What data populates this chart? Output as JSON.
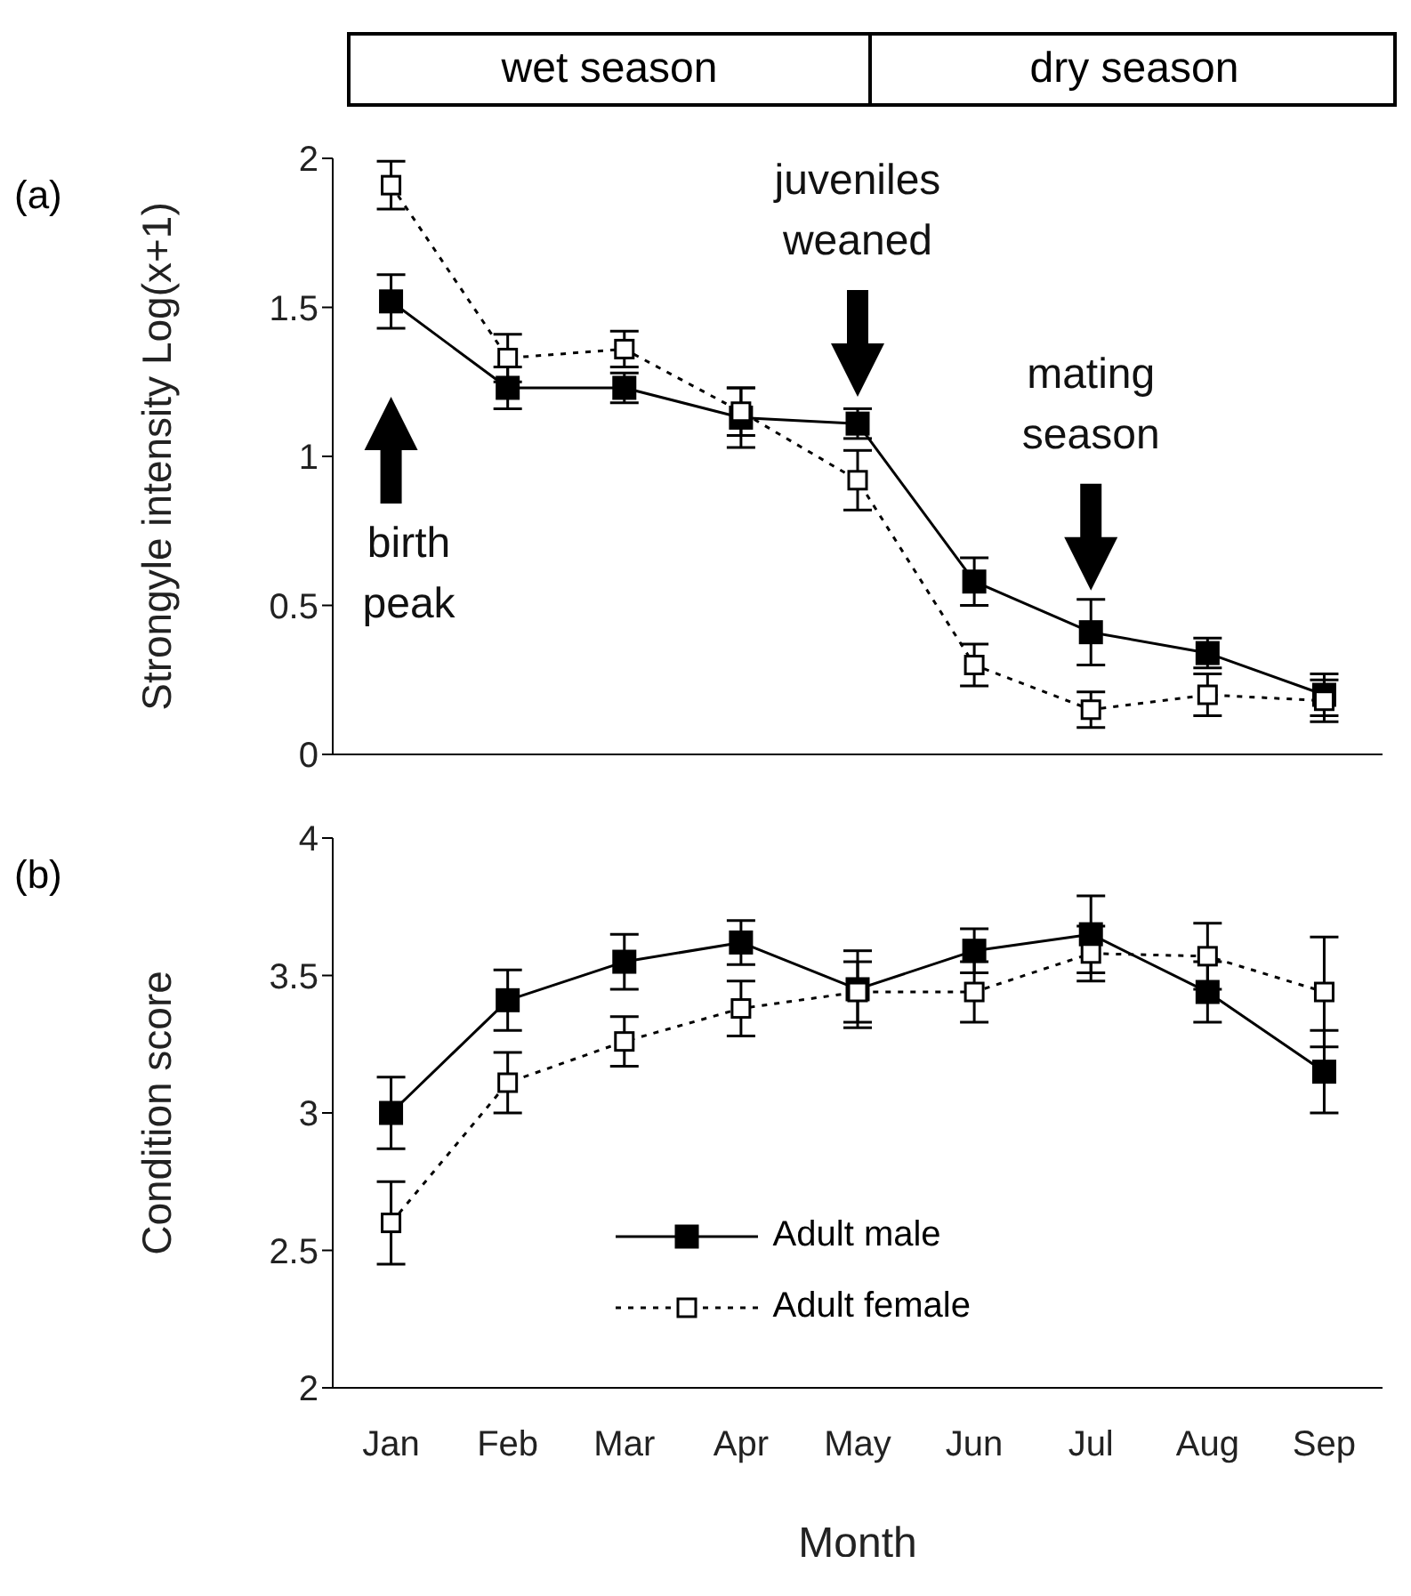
{
  "chart_data": [
    {
      "type": "line",
      "title": "(a)",
      "ylabel": "Strongyle intensity Log(x+1)",
      "categories": [
        null,
        null,
        null,
        null,
        null,
        null,
        null,
        null,
        null
      ],
      "ylim": [
        0,
        2
      ],
      "yticks": [
        0,
        0.5,
        1,
        1.5,
        2
      ],
      "tick_labels": "y",
      "marker": "square",
      "series": [
        {
          "color": "#000000",
          "line_style": "solid",
          "values": [
            1.52,
            1.23,
            1.23,
            1.13,
            1.11,
            0.58,
            0.41,
            0.34,
            0.2
          ],
          "errors": [
            0.09,
            0.07,
            0.05,
            0.1,
            0.05,
            0.08,
            0.11,
            0.05,
            0.07
          ]
        },
        {
          "color": "#000000",
          "line_style": "dotted",
          "values": [
            1.91,
            1.33,
            1.36,
            1.15,
            0.92,
            0.3,
            0.15,
            0.2,
            0.18
          ],
          "errors": [
            0.08,
            0.08,
            0.06,
            0.08,
            0.1,
            0.07,
            0.06,
            0.07,
            0.07
          ]
        }
      ],
      "annotations": [
        "wet season",
        "dry season",
        "birth peak",
        "juveniles weaned",
        "mating season"
      ]
    },
    {
      "type": "line",
      "title": "(b)",
      "ylabel": "Condition score",
      "xlabel": "Month",
      "categories": [
        "Jan",
        "Feb",
        "Mar",
        "Apr",
        "May",
        "Jun",
        "Jul",
        "Aug",
        "Sep"
      ],
      "ylim": [
        2,
        4
      ],
      "yticks": [
        2,
        2.5,
        3,
        3.5,
        4
      ],
      "marker": "square",
      "legend": "bottom",
      "series": [
        {
          "name": "Adult male",
          "color": "#000000",
          "line_style": "solid",
          "values": [
            3.0,
            3.41,
            3.55,
            3.62,
            3.45,
            3.59,
            3.65,
            3.44,
            3.15
          ],
          "errors": [
            0.13,
            0.11,
            0.1,
            0.08,
            0.14,
            0.08,
            0.14,
            0.11,
            0.15
          ]
        },
        {
          "name": "Adult female",
          "color": "#000000",
          "line_style": "dotted",
          "values": [
            2.6,
            3.11,
            3.26,
            3.38,
            3.44,
            3.44,
            3.58,
            3.57,
            3.44
          ],
          "errors": [
            0.15,
            0.11,
            0.09,
            0.1,
            0.11,
            0.11,
            0.1,
            0.12,
            0.2
          ]
        }
      ]
    }
  ]
}
